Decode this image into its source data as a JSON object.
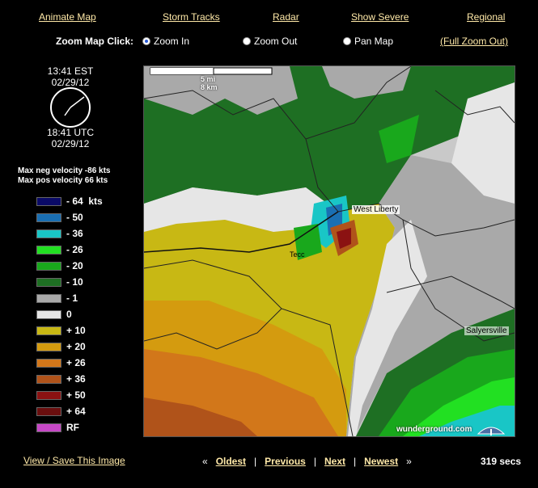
{
  "nav": {
    "animate": "Animate Map",
    "storm": "Storm Tracks",
    "radar": "Radar",
    "severe": "Show Severe",
    "regional": "Regional"
  },
  "zoom": {
    "label": "Zoom Map Click:",
    "zoom_in": "Zoom In",
    "zoom_out": "Zoom Out",
    "pan": "Pan Map",
    "full": "(Full Zoom Out)",
    "selected": "Zoom In"
  },
  "time": {
    "local_time": "13:41  EST",
    "local_date": "02/29/12",
    "utc_time": "18:41  UTC",
    "utc_date": "02/29/12"
  },
  "velocity": {
    "max_neg": "Max neg  velocity  -86 kts",
    "max_pos": "Max pos  velocity  66 kts"
  },
  "legend": [
    {
      "label": "- 64  kts",
      "color": "#0a0a66"
    },
    {
      "label": "- 50",
      "color": "#1a6fb3"
    },
    {
      "label": "- 36",
      "color": "#19c6c6"
    },
    {
      "label": "- 26",
      "color": "#22e022"
    },
    {
      "label": "- 20",
      "color": "#19a81c"
    },
    {
      "label": "- 10",
      "color": "#1e6f23"
    },
    {
      "label": "- 1",
      "color": "#a9a9a9"
    },
    {
      "label": "0",
      "color": "#e6e6e6"
    },
    {
      "label": "+ 10",
      "color": "#c8b814"
    },
    {
      "label": "+ 20",
      "color": "#d49b0f"
    },
    {
      "label": "+ 26",
      "color": "#d2771a"
    },
    {
      "label": "+ 36",
      "color": "#b0531a"
    },
    {
      "label": "+ 50",
      "color": "#8b1212"
    },
    {
      "label": "+ 64",
      "color": "#6a0e0e"
    },
    {
      "label": "RF",
      "color": "#c648c6"
    }
  ],
  "map": {
    "scale_mi": "5 mi",
    "scale_km": "8 km",
    "town1": "West Liberty",
    "town2": "Salyersville",
    "town3": "Tecc",
    "brand": "wunderground.com"
  },
  "footer": {
    "view_save": "View / Save This Image",
    "oldest": "Oldest",
    "previous": "Previous",
    "next": "Next",
    "newest": "Newest",
    "secs": "319 secs",
    "open": "«",
    "close": "»",
    "sep": "|"
  }
}
